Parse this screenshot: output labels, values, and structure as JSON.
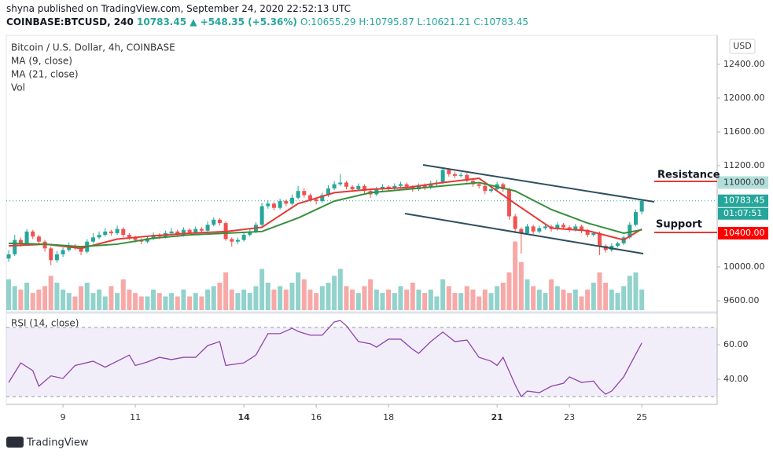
{
  "header": {
    "published": "shyna published on TradingView.com, September 24, 2020 22:52:13 UTC",
    "symbol": "COINBASE:BTCUSD, 240",
    "change": "10783.45 ▲ +548.35 (+5.36%)",
    "ohlc": "O:10655.29 H:10795.87 L:10621.21 C:10783.45"
  },
  "legend": [
    "Bitcoin / U.S. Dollar, 4h, COINBASE",
    "MA (9, close)",
    "MA (21, close)",
    "Vol"
  ],
  "annotations": [
    {
      "text": "Resistance",
      "color": "#e53935"
    },
    {
      "text": "Support",
      "color": "#1b7a2e"
    }
  ],
  "footer": "TradingView",
  "chart_data": {
    "type": "candlestick",
    "currency": "USD",
    "up_color": "#26a69a",
    "down_color": "#ef5350",
    "xlim": [
      -0.4,
      117.5
    ],
    "xticks": [
      {
        "value": 9,
        "label": "9"
      },
      {
        "value": 21,
        "label": "11"
      },
      {
        "value": 39,
        "label": "14"
      },
      {
        "value": 51,
        "label": "16"
      },
      {
        "value": 63,
        "label": "18"
      },
      {
        "value": 81,
        "label": "21"
      },
      {
        "value": 93,
        "label": "23"
      },
      {
        "value": 105,
        "label": "25"
      }
    ],
    "ylim": [
      9488,
      12744
    ],
    "yticks": [
      {
        "value": 12400,
        "label": "12400.00"
      },
      {
        "value": 12000,
        "label": "12000.00"
      },
      {
        "value": 11600,
        "label": "11600.00"
      },
      {
        "value": 11200,
        "label": "11200.00"
      },
      {
        "value": 10000,
        "label": "10000.00"
      },
      {
        "value": 9600,
        "label": "9600.00"
      }
    ],
    "price_labels": [
      {
        "value": 11000,
        "label": "11000.00",
        "color": "#b2dfdb",
        "text_color": "#333333"
      },
      {
        "value": 10783.45,
        "label": "10783.45",
        "color": "#26a69a",
        "text_color": "#ffffff"
      },
      {
        "value": 10400,
        "label": "10400.00",
        "color": "#ff0000",
        "text_color": "#ffffff"
      }
    ],
    "countdown": "01:07:51",
    "candles": [
      [
        10100,
        10200,
        10060,
        10150
      ],
      [
        10150,
        10380,
        10130,
        10320
      ],
      [
        10320,
        10350,
        10240,
        10280
      ],
      [
        10280,
        10450,
        10260,
        10420
      ],
      [
        10420,
        10440,
        10330,
        10360
      ],
      [
        10360,
        10380,
        10270,
        10300
      ],
      [
        10300,
        10320,
        10180,
        10220
      ],
      [
        10220,
        10240,
        10020,
        10080
      ],
      [
        10080,
        10190,
        10050,
        10150
      ],
      [
        10150,
        10230,
        10120,
        10200
      ],
      [
        10200,
        10290,
        10180,
        10250
      ],
      [
        10250,
        10270,
        10200,
        10230
      ],
      [
        10230,
        10250,
        10140,
        10180
      ],
      [
        10180,
        10330,
        10160,
        10300
      ],
      [
        10300,
        10400,
        10280,
        10350
      ],
      [
        10350,
        10420,
        10330,
        10380
      ],
      [
        10380,
        10460,
        10360,
        10420
      ],
      [
        10420,
        10440,
        10370,
        10400
      ],
      [
        10400,
        10490,
        10380,
        10450
      ],
      [
        10450,
        10470,
        10350,
        10380
      ],
      [
        10380,
        10400,
        10320,
        10350
      ],
      [
        10350,
        10370,
        10290,
        10320
      ],
      [
        10320,
        10340,
        10270,
        10300
      ],
      [
        10300,
        10370,
        10280,
        10340
      ],
      [
        10340,
        10410,
        10320,
        10380
      ],
      [
        10380,
        10400,
        10330,
        10360
      ],
      [
        10360,
        10430,
        10340,
        10400
      ],
      [
        10400,
        10460,
        10380,
        10420
      ],
      [
        10420,
        10440,
        10350,
        10380
      ],
      [
        10380,
        10470,
        10360,
        10440
      ],
      [
        10440,
        10460,
        10390,
        10410
      ],
      [
        10410,
        10480,
        10390,
        10450
      ],
      [
        10450,
        10470,
        10400,
        10430
      ],
      [
        10430,
        10540,
        10410,
        10500
      ],
      [
        10500,
        10590,
        10480,
        10560
      ],
      [
        10560,
        10580,
        10490,
        10520
      ],
      [
        10520,
        10540,
        10310,
        10330
      ],
      [
        10330,
        10350,
        10240,
        10300
      ],
      [
        10300,
        10350,
        10270,
        10320
      ],
      [
        10320,
        10410,
        10300,
        10380
      ],
      [
        10380,
        10450,
        10360,
        10420
      ],
      [
        10420,
        10530,
        10400,
        10500
      ],
      [
        10500,
        10760,
        10480,
        10720
      ],
      [
        10720,
        10790,
        10690,
        10750
      ],
      [
        10750,
        10770,
        10670,
        10700
      ],
      [
        10700,
        10810,
        10680,
        10780
      ],
      [
        10780,
        10800,
        10720,
        10750
      ],
      [
        10750,
        10860,
        10730,
        10820
      ],
      [
        10820,
        10960,
        10800,
        10900
      ],
      [
        10900,
        10930,
        10820,
        10850
      ],
      [
        10850,
        10870,
        10770,
        10800
      ],
      [
        10800,
        10820,
        10740,
        10780
      ],
      [
        10780,
        10880,
        10760,
        10850
      ],
      [
        10850,
        10970,
        10830,
        10930
      ],
      [
        10930,
        11020,
        10910,
        10980
      ],
      [
        10980,
        11100,
        10960,
        11000
      ],
      [
        11000,
        11020,
        10920,
        10950
      ],
      [
        10950,
        10970,
        10890,
        10920
      ],
      [
        10920,
        10990,
        10900,
        10960
      ],
      [
        10960,
        10980,
        10870,
        10900
      ],
      [
        10900,
        10920,
        10820,
        10860
      ],
      [
        10860,
        10950,
        10840,
        10920
      ],
      [
        10920,
        10980,
        10900,
        10950
      ],
      [
        10950,
        10970,
        10900,
        10930
      ],
      [
        10930,
        10990,
        10910,
        10960
      ],
      [
        10960,
        11010,
        10940,
        10980
      ],
      [
        10980,
        11000,
        10920,
        10950
      ],
      [
        10950,
        10970,
        10890,
        10920
      ],
      [
        10920,
        10990,
        10900,
        10970
      ],
      [
        10970,
        10990,
        10910,
        10940
      ],
      [
        10940,
        11020,
        10920,
        10990
      ],
      [
        10990,
        11030,
        10960,
        11000
      ],
      [
        11000,
        11180,
        10980,
        11150
      ],
      [
        11150,
        11170,
        11070,
        11100
      ],
      [
        11100,
        11130,
        11050,
        11080
      ],
      [
        11080,
        11120,
        11060,
        11090
      ],
      [
        11090,
        11110,
        11000,
        11020
      ],
      [
        11020,
        11040,
        10950,
        10980
      ],
      [
        10980,
        11000,
        10930,
        10960
      ],
      [
        10960,
        10980,
        10860,
        10900
      ],
      [
        10900,
        10950,
        10880,
        10920
      ],
      [
        10920,
        11010,
        10900,
        10980
      ],
      [
        10980,
        11000,
        10890,
        10920
      ],
      [
        10920,
        10940,
        10560,
        10600
      ],
      [
        10600,
        10630,
        10400,
        10450
      ],
      [
        10450,
        10470,
        10160,
        10400
      ],
      [
        10400,
        10510,
        10380,
        10480
      ],
      [
        10480,
        10500,
        10390,
        10420
      ],
      [
        10420,
        10490,
        10400,
        10460
      ],
      [
        10460,
        10510,
        10440,
        10480
      ],
      [
        10480,
        10500,
        10420,
        10450
      ],
      [
        10450,
        10530,
        10430,
        10500
      ],
      [
        10500,
        10520,
        10440,
        10470
      ],
      [
        10470,
        10490,
        10410,
        10440
      ],
      [
        10440,
        10510,
        10420,
        10480
      ],
      [
        10480,
        10500,
        10400,
        10430
      ],
      [
        10430,
        10450,
        10350,
        10380
      ],
      [
        10380,
        10420,
        10360,
        10400
      ],
      [
        10400,
        10420,
        10140,
        10250
      ],
      [
        10250,
        10270,
        10170,
        10200
      ],
      [
        10200,
        10280,
        10180,
        10250
      ],
      [
        10250,
        10300,
        10230,
        10280
      ],
      [
        10280,
        10370,
        10260,
        10350
      ],
      [
        10350,
        10530,
        10330,
        10500
      ],
      [
        10500,
        10680,
        10480,
        10650
      ],
      [
        10655.29,
        10795.87,
        10621.21,
        10783.45
      ]
    ],
    "volume_lim": [
      0,
      400
    ],
    "volume": [
      45,
      35,
      30,
      40,
      25,
      30,
      35,
      50,
      40,
      30,
      25,
      20,
      35,
      40,
      25,
      30,
      20,
      35,
      25,
      45,
      30,
      25,
      20,
      20,
      30,
      25,
      20,
      25,
      20,
      30,
      20,
      25,
      20,
      30,
      35,
      40,
      55,
      30,
      25,
      30,
      25,
      35,
      60,
      40,
      30,
      35,
      30,
      40,
      55,
      45,
      30,
      25,
      35,
      40,
      50,
      60,
      35,
      30,
      25,
      35,
      45,
      30,
      25,
      30,
      25,
      35,
      30,
      40,
      30,
      25,
      30,
      20,
      45,
      35,
      25,
      25,
      35,
      30,
      20,
      30,
      25,
      35,
      40,
      55,
      100,
      70,
      45,
      35,
      30,
      25,
      45,
      35,
      30,
      25,
      30,
      20,
      30,
      40,
      55,
      40,
      30,
      25,
      35,
      50,
      55,
      30
    ],
    "series": [
      {
        "name": "MA (9, close)",
        "color": "#e53935",
        "x": [
          0,
          6,
          12,
          18,
          24,
          30,
          36,
          42,
          48,
          54,
          60,
          66,
          72,
          78,
          84,
          90,
          96,
          102,
          105
        ],
        "values": [
          10250,
          10270,
          10220,
          10330,
          10370,
          10400,
          10420,
          10470,
          10750,
          10880,
          10920,
          10940,
          11000,
          11050,
          10750,
          10460,
          10430,
          10320,
          10450
        ]
      },
      {
        "name": "MA (21, close)",
        "color": "#388e3c",
        "x": [
          0,
          6,
          12,
          18,
          24,
          30,
          36,
          42,
          48,
          54,
          60,
          66,
          72,
          78,
          84,
          90,
          96,
          102,
          105
        ],
        "values": [
          10280,
          10270,
          10240,
          10270,
          10340,
          10380,
          10400,
          10420,
          10580,
          10780,
          10880,
          10920,
          10960,
          11000,
          10900,
          10680,
          10520,
          10400,
          10440
        ]
      }
    ],
    "rsi": {
      "name": "RSI (14, close)",
      "color": "#8e44ad",
      "ylim": [
        25.5,
        76.8
      ],
      "yticks": [
        {
          "value": 60,
          "label": "60.00"
        },
        {
          "value": 40,
          "label": "40.00"
        }
      ],
      "bands": [
        30,
        70
      ],
      "x": [
        0,
        2,
        4,
        5,
        7,
        9,
        11,
        14,
        16,
        18,
        20,
        21,
        23,
        25,
        27,
        29,
        31,
        33,
        35,
        36,
        39,
        41,
        43,
        45,
        47,
        48,
        50,
        52,
        54,
        55,
        56,
        58,
        60,
        61,
        63,
        65,
        67,
        68,
        70,
        72,
        74,
        76,
        78,
        80,
        81,
        82,
        84,
        85,
        86,
        88,
        90,
        92,
        93,
        95,
        97,
        98,
        99,
        100,
        102,
        103,
        105
      ],
      "values": [
        38.2,
        49.5,
        45,
        36,
        42,
        40.5,
        48,
        50.5,
        47,
        50.5,
        54,
        48,
        50,
        52.7,
        51.4,
        52.7,
        52.7,
        59.5,
        61.8,
        48,
        49.5,
        54,
        66.4,
        66.4,
        69.5,
        67.7,
        65.5,
        65.5,
        73.2,
        74,
        71,
        61.8,
        60.5,
        58.6,
        63.2,
        63.2,
        57.3,
        55,
        61.8,
        67.3,
        61.8,
        62.7,
        52.7,
        50.5,
        48,
        52.7,
        36.8,
        30,
        33.2,
        32.3,
        36,
        37.7,
        41.4,
        38.2,
        39,
        34.5,
        31.4,
        33.2,
        41.4,
        48,
        61
      ]
    }
  }
}
